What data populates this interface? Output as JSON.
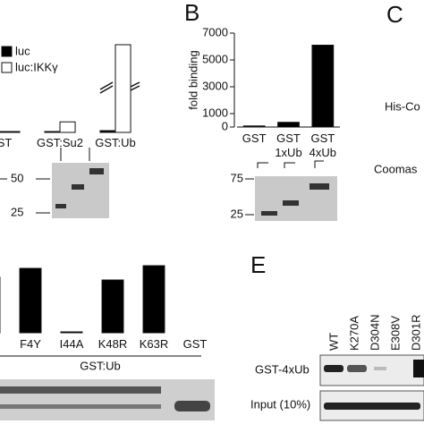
{
  "chart_data": [
    {
      "type": "bar",
      "categories": [
        "ST",
        "GST:Su2",
        "GST:Ub"
      ],
      "series": [
        {
          "name": "luc",
          "color": "#000000",
          "values": [
            1,
            1,
            2
          ]
        },
        {
          "name": "luc:IKKγ",
          "color": "#ffffff",
          "values": [
            1,
            12,
            100
          ]
        }
      ],
      "ylim": [
        0,
        100
      ],
      "legend": "top-left"
    },
    {
      "type": "bar",
      "y_label": "fold binding",
      "categories": [
        "GST",
        "GST\n1xUb",
        "GST\n4xUb"
      ],
      "values": [
        80,
        350,
        6100
      ],
      "color": "#000000",
      "ylim": [
        0,
        7000
      ],
      "yticks": [
        0,
        1000,
        3000,
        5000,
        7000
      ]
    },
    {
      "type": "bar",
      "categories": [
        null,
        "F4Y",
        "I44A",
        "K48R",
        "K63R",
        "GST"
      ],
      "values": [
        62,
        72,
        1,
        59,
        75,
        0
      ],
      "color": "#000000",
      "ylim": [
        0,
        100
      ]
    }
  ],
  "panel_a": {
    "markers": [
      "50",
      "25"
    ]
  },
  "panel_b": {
    "letter": "B",
    "markers": [
      "75",
      "25"
    ]
  },
  "panel_c": {
    "letter": "C",
    "rows": [
      "His-Co",
      "Coomas"
    ]
  },
  "panel_d": {
    "group_label": "GST:Ub"
  },
  "panel_e": {
    "letter": "E",
    "lanes": [
      "WT",
      "K270A",
      "D304N",
      "E308V",
      "D301R"
    ],
    "rows": [
      "GST-4xUb",
      "Input (10%)"
    ]
  }
}
